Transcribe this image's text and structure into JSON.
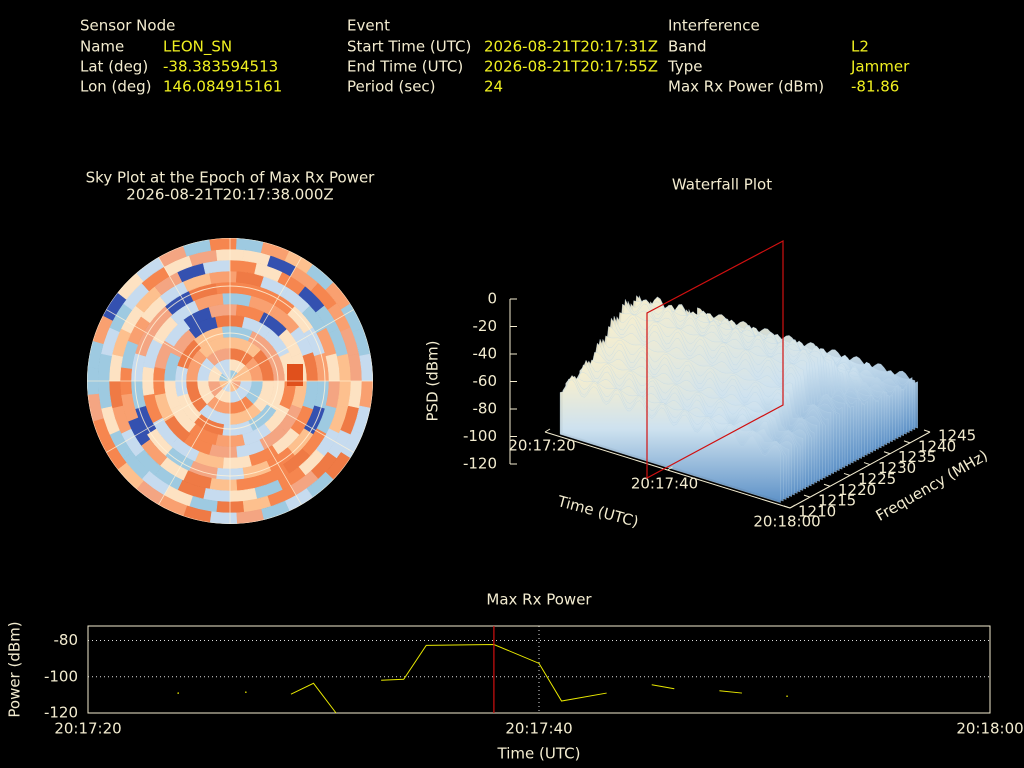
{
  "info": [
    {
      "title": "Sensor Node",
      "fields": [
        {
          "label": "Name",
          "value": "LEON_SN"
        },
        {
          "label": "Lat (deg)",
          "value": -38.383594513
        },
        {
          "label": "Lon (deg)",
          "value": 146.084915161
        }
      ]
    },
    {
      "title": "Event",
      "fields": [
        {
          "label": "Start Time (UTC)",
          "value": "2026-08-21T20:17:31Z"
        },
        {
          "label": "End Time (UTC)",
          "value": "2026-08-21T20:17:55Z"
        },
        {
          "label": "Period (sec)",
          "value": 24
        }
      ]
    },
    {
      "title": "Interference",
      "fields": [
        {
          "label": "Band",
          "value": "L2"
        },
        {
          "label": "Type",
          "value": "Jammer"
        },
        {
          "label": "Max Rx Power (dBm)",
          "value": -81.86
        }
      ]
    }
  ],
  "chart_data": [
    {
      "type": "sky",
      "title": "Sky Plot at the Epoch of Max Rx Power",
      "subtitle": "2026-08-21T20:17:38.000Z"
    },
    {
      "type": "waterfall",
      "title": "Waterfall Plot",
      "z_label": "PSD (dBm)",
      "x_label": "Time (UTC)",
      "y_label": "Frequency (MHz)",
      "zlim": [
        -120,
        0
      ],
      "zticks": [
        0,
        -20,
        -40,
        -60,
        -80,
        -100,
        -120
      ],
      "xlim": [
        0,
        40
      ],
      "xticks": [
        {
          "value": 0,
          "label": "20:17:20"
        },
        {
          "value": 20,
          "label": "20:17:40"
        },
        {
          "value": 40,
          "label": "20:18:00"
        }
      ],
      "ylim": [
        1210,
        1245
      ],
      "yticks": [
        1210,
        1215,
        1220,
        1225,
        1230,
        1235,
        1240,
        1245
      ]
    },
    {
      "type": "line",
      "title": "Max Rx Power",
      "x_label": "Time (UTC)",
      "y_label": "Power (dBm)",
      "color": "#e8e800",
      "xlim": [
        0,
        40
      ],
      "xticks": [
        {
          "value": 0,
          "label": "20:17:20"
        },
        {
          "value": 20,
          "label": "20:17:40"
        },
        {
          "value": 40,
          "label": "20:18:00"
        }
      ],
      "ylim": [
        -120,
        -72
      ],
      "yticks": [
        -120,
        -100,
        -80
      ],
      "epoch_marker": 18,
      "x": [
        4,
        5,
        7,
        8,
        9,
        10,
        11,
        12,
        13,
        14,
        15,
        18,
        20,
        21,
        23,
        24,
        25,
        26,
        27,
        28,
        29,
        30,
        31
      ],
      "values": [
        -109,
        null,
        -108.5,
        null,
        -109.6,
        -103.6,
        -120,
        null,
        -101.9,
        -101.4,
        -82.7,
        -82.2,
        -92.6,
        -113.4,
        -109,
        null,
        -104.4,
        -106.6,
        null,
        -107.7,
        -109,
        null,
        -110.7
      ]
    }
  ]
}
